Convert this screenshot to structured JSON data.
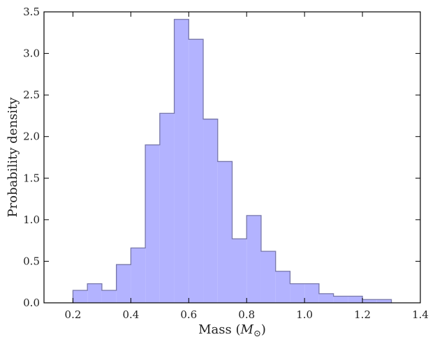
{
  "chart_data": {
    "type": "histogram",
    "xlabel": "Mass",
    "xlabel_unit_symbol": "M",
    "xlabel_unit_subscript": "⊙",
    "ylabel": "Probability density",
    "xlim": [
      0.1,
      1.4
    ],
    "ylim": [
      0.0,
      3.5
    ],
    "x_ticks": [
      0.2,
      0.4,
      0.6,
      0.8,
      1.0,
      1.2,
      1.4
    ],
    "x_tick_labels": [
      "0.2",
      "0.4",
      "0.6",
      "0.8",
      "1.0",
      "1.2",
      "1.4"
    ],
    "y_ticks": [
      0.0,
      0.5,
      1.0,
      1.5,
      2.0,
      2.5,
      3.0,
      3.5
    ],
    "y_tick_labels": [
      "0.0",
      "0.5",
      "1.0",
      "1.5",
      "2.0",
      "2.5",
      "3.0",
      "3.5"
    ],
    "grid": false,
    "bin_edges": [
      0.2,
      0.25,
      0.3,
      0.35,
      0.4,
      0.45,
      0.5,
      0.55,
      0.6,
      0.65,
      0.7,
      0.75,
      0.8,
      0.85,
      0.9,
      0.95,
      1.0,
      1.05,
      1.1,
      1.15,
      1.2,
      1.25,
      1.3
    ],
    "values": [
      0.15,
      0.23,
      0.15,
      0.46,
      0.66,
      1.9,
      2.28,
      3.41,
      3.17,
      2.21,
      1.7,
      0.77,
      1.05,
      0.62,
      0.38,
      0.23,
      0.23,
      0.11,
      0.08,
      0.08,
      0.04,
      0.04
    ],
    "colors": {
      "fill": "#b3b3ff",
      "stroke": "#7777aa",
      "axis": "#000000"
    }
  }
}
